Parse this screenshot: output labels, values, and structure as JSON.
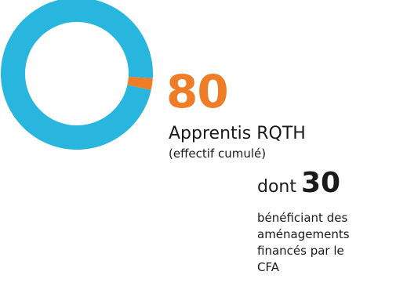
{
  "chart_data": {
    "type": "pie",
    "style": "donut",
    "slices": [
      {
        "value": 97.5,
        "color": "#29b6de"
      },
      {
        "value": 2.5,
        "color": "#ef7d27"
      }
    ],
    "title": "",
    "legend": "none"
  },
  "headline": {
    "value": "80",
    "label": "Apprentis RQTH",
    "sublabel": "(effectif cumulé)",
    "value_color": "#ef7d27"
  },
  "subset": {
    "prefix": "dont",
    "value": "30",
    "lines": [
      "bénéficiant des",
      "aménagements",
      "financés par le",
      "CFA"
    ]
  }
}
